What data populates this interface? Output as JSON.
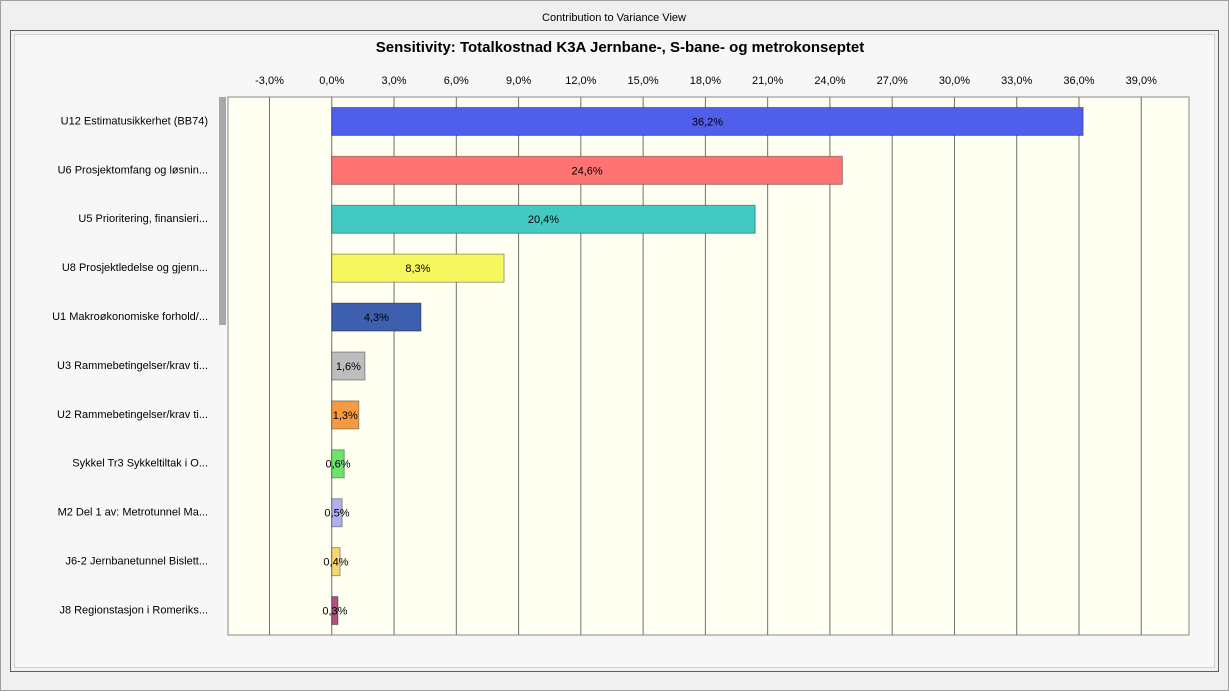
{
  "window_title": "Contribution to Variance View",
  "chart_data": {
    "type": "barh",
    "title": "Sensitivity: Totalkostnad K3A Jernbane-, S-bane- og metrokonseptet",
    "categories": [
      "U12 Estimatusikkerhet (BB74)",
      "U6 Prosjektomfang og løsnin...",
      "U5 Prioritering, finansieri...",
      "U8 Prosjektledelse og gjenn...",
      "U1 Makroøkonomiske forhold/...",
      "U3 Rammebetingelser/krav ti...",
      "U2 Rammebetingelser/krav ti...",
      "Sykkel Tr3 Sykkeltiltak i O...",
      "M2 Del 1 av: Metrotunnel Ma...",
      "J6-2 Jernbanetunnel Bislett...",
      "J8 Regionstasjon i Romeriks..."
    ],
    "values": [
      36.2,
      24.6,
      20.4,
      8.3,
      4.3,
      1.6,
      1.3,
      0.6,
      0.5,
      0.4,
      0.3
    ],
    "value_labels": [
      "36,2%",
      "24,6%",
      "20,4%",
      "8,3%",
      "4,3%",
      "1,6%",
      "1,3%",
      "0,6%",
      "0,5%",
      "0,4%",
      "0,3%"
    ],
    "colors": [
      "#4f5fec",
      "#ff7373",
      "#42c9c2",
      "#f7f760",
      "#3d5fae",
      "#bdbdbd",
      "#f79a42",
      "#6ee46e",
      "#b0b0f0",
      "#f7d474",
      "#b05282"
    ],
    "xlim": [
      -5,
      41.3
    ],
    "xticks": [
      {
        "value": -3,
        "label": "-3,0%"
      },
      {
        "value": 0,
        "label": "0,0%"
      },
      {
        "value": 3,
        "label": "3,0%"
      },
      {
        "value": 6,
        "label": "6,0%"
      },
      {
        "value": 9,
        "label": "9,0%"
      },
      {
        "value": 12,
        "label": "12,0%"
      },
      {
        "value": 15,
        "label": "15,0%"
      },
      {
        "value": 18,
        "label": "18,0%"
      },
      {
        "value": 21,
        "label": "21,0%"
      },
      {
        "value": 24,
        "label": "24,0%"
      },
      {
        "value": 27,
        "label": "27,0%"
      },
      {
        "value": 30,
        "label": "30,0%"
      },
      {
        "value": 33,
        "label": "33,0%"
      },
      {
        "value": 36,
        "label": "36,0%"
      },
      {
        "value": 39,
        "label": "39,0%"
      }
    ],
    "grid": true
  }
}
